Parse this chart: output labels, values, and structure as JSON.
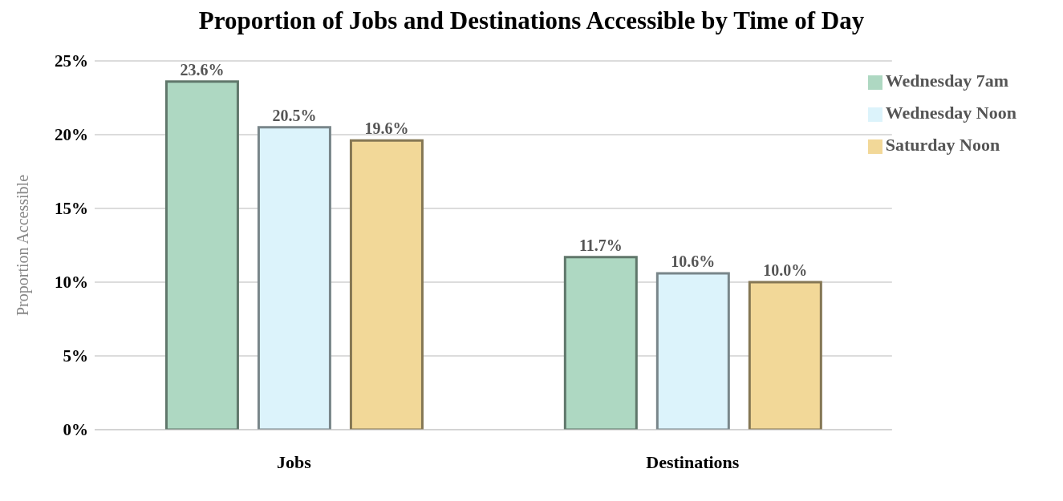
{
  "chart_data": {
    "type": "bar",
    "title": "Proportion of Jobs and Destinations Accessible by Time of Day",
    "ylabel": "Proportion Accessible",
    "categories": [
      "Jobs",
      "Destinations"
    ],
    "series": [
      {
        "name": "Wednesday 7am",
        "color": "#aed8c2",
        "values": [
          23.6,
          11.7
        ],
        "value_labels": [
          "23.6%",
          "11.7%"
        ]
      },
      {
        "name": "Wednesday Noon",
        "color": "#dcf3fb",
        "values": [
          20.5,
          10.6
        ],
        "value_labels": [
          "20.5%",
          "10.6%"
        ]
      },
      {
        "name": "Saturday Noon",
        "color": "#f2d898",
        "values": [
          19.6,
          10.0
        ],
        "value_labels": [
          "19.6%",
          "10.0%"
        ]
      }
    ],
    "ylim": [
      0,
      25
    ],
    "yticks": [
      {
        "value": 0,
        "label": "0%"
      },
      {
        "value": 5,
        "label": "5%"
      },
      {
        "value": 10,
        "label": "10%"
      },
      {
        "value": 15,
        "label": "15%"
      },
      {
        "value": 20,
        "label": "20%"
      },
      {
        "value": 25,
        "label": "25%"
      }
    ],
    "grid": "y",
    "legend": "top right"
  }
}
